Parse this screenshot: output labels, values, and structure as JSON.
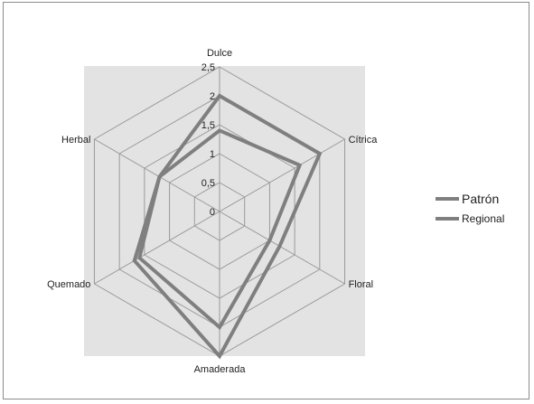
{
  "chart_data": {
    "type": "radar",
    "axes": [
      "Dulce",
      "Cítrica",
      "Floral",
      "Amaderada",
      "Quemado",
      "Herbal"
    ],
    "scale": {
      "min": 0,
      "max": 2.5,
      "step": 0.5
    },
    "tick_labels": [
      "0",
      "0,5",
      "1",
      "1,5",
      "2",
      "2,5"
    ],
    "series": [
      {
        "name": "Patrón",
        "values": [
          2.0,
          2.0,
          1.2,
          2.5,
          1.7,
          1.2
        ],
        "color": "#7f7f7f"
      },
      {
        "name": "Regional",
        "values": [
          1.4,
          1.6,
          1.0,
          2.0,
          1.6,
          1.2
        ],
        "color": "#7f7f7f"
      }
    ],
    "grid": true,
    "plot_background": "#e3e3e3",
    "legend_position": "right"
  }
}
